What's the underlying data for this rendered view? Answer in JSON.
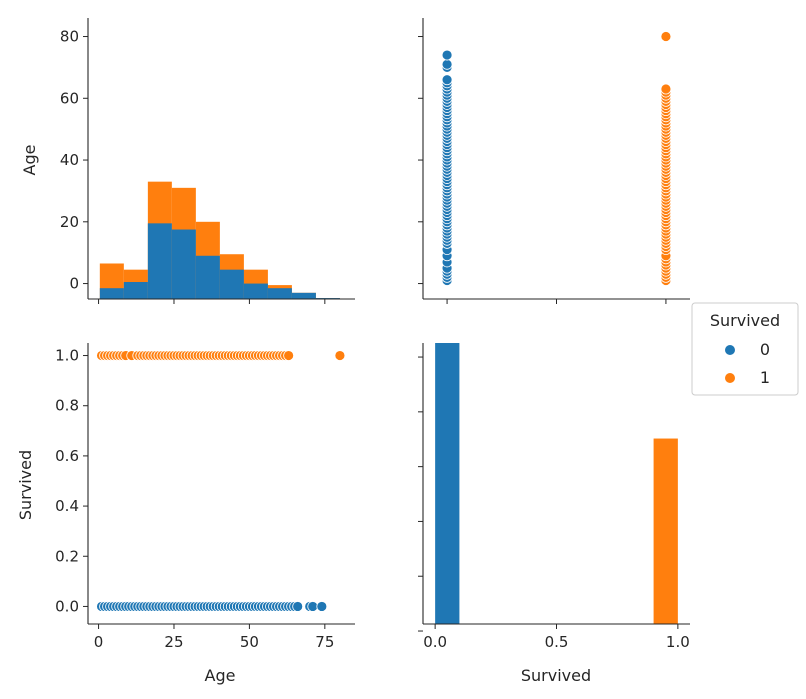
{
  "colors": {
    "survived_0": "#1f77b4",
    "survived_1": "#ff7f0e",
    "axis": "#262626"
  },
  "legend": {
    "title": "Survived",
    "entries": [
      {
        "label": "0",
        "color": "#1f77b4"
      },
      {
        "label": "1",
        "color": "#ff7f0e"
      }
    ],
    "placement": "right"
  },
  "chart_data": [
    {
      "panel": "age-vs-age",
      "type": "bar",
      "stacked": true,
      "xlabel": "",
      "ylabel": "Age",
      "ylim": [
        -5,
        86
      ],
      "yticks": [
        "0",
        "20",
        "40",
        "60",
        "80"
      ],
      "xlim": [
        -3.5,
        85
      ],
      "bin_edges": [
        0.42,
        8.38,
        16.34,
        24.29,
        32.25,
        40.21,
        48.17,
        56.13,
        64.08,
        72.04,
        80.0
      ],
      "series": [
        {
          "name": "0",
          "values": [
            -1.5,
            0.5,
            19.5,
            17.5,
            9.0,
            4.5,
            0.0,
            -1.5,
            -3.0,
            -4.7
          ]
        },
        {
          "name": "1",
          "values": [
            6.5,
            4.5,
            33.0,
            31.0,
            20.0,
            9.5,
            4.5,
            -0.5,
            -3.0,
            -4.7
          ]
        }
      ]
    },
    {
      "panel": "survived-vs-age",
      "type": "scatter",
      "xlabel": "",
      "ylabel": "",
      "xlim": [
        -0.11,
        1.11
      ],
      "ylim": [
        -5,
        86
      ],
      "series": [
        {
          "name": "0",
          "x": 0,
          "y": [
            1,
            2,
            3,
            4,
            5,
            7,
            9,
            11,
            13,
            14,
            15,
            16,
            17,
            18,
            19,
            20,
            21,
            22,
            23,
            24,
            25,
            26,
            27,
            28,
            29,
            30,
            31,
            32,
            33,
            34,
            35,
            36,
            37,
            38,
            39,
            40,
            41,
            42,
            43,
            44,
            45,
            46,
            47,
            48,
            49,
            50,
            51,
            52,
            53,
            54,
            55,
            56,
            57,
            58,
            59,
            60,
            61,
            62,
            63,
            64,
            65,
            66,
            70,
            71,
            74
          ]
        },
        {
          "name": "1",
          "x": 1,
          "y": [
            0.9,
            1,
            2,
            3,
            4,
            5,
            6,
            7,
            8,
            9,
            11,
            12,
            13,
            14,
            15,
            16,
            17,
            18,
            19,
            20,
            21,
            22,
            23,
            24,
            25,
            26,
            27,
            28,
            29,
            30,
            31,
            32,
            33,
            34,
            35,
            36,
            37,
            38,
            39,
            40,
            41,
            42,
            43,
            44,
            45,
            46,
            47,
            48,
            49,
            50,
            51,
            52,
            53,
            54,
            55,
            56,
            57,
            58,
            59,
            60,
            61,
            62,
            63,
            80
          ]
        }
      ]
    },
    {
      "panel": "age-vs-survived",
      "type": "scatter",
      "xlabel": "Age",
      "ylabel": "Survived",
      "xlim": [
        -3.5,
        85
      ],
      "ylim": [
        -0.07,
        1.05
      ],
      "xticks": [
        "0",
        "25",
        "50",
        "75"
      ],
      "yticks": [
        "0.0",
        "0.2",
        "0.4",
        "0.6",
        "0.8",
        "1.0"
      ],
      "series": [
        {
          "name": "0",
          "y": 0,
          "x": [
            1,
            2,
            3,
            4,
            5,
            6,
            7,
            8,
            9,
            10,
            11,
            12,
            13,
            14,
            15,
            16,
            17,
            18,
            19,
            20,
            21,
            22,
            23,
            24,
            25,
            26,
            27,
            28,
            29,
            30,
            31,
            32,
            33,
            34,
            35,
            36,
            37,
            38,
            39,
            40,
            41,
            42,
            43,
            44,
            45,
            46,
            47,
            48,
            49,
            50,
            51,
            52,
            53,
            54,
            55,
            56,
            57,
            58,
            59,
            60,
            61,
            62,
            63,
            64,
            65,
            66,
            70,
            71,
            74
          ]
        },
        {
          "name": "1",
          "y": 1,
          "x": [
            0.9,
            1,
            2,
            3,
            4,
            5,
            6,
            7,
            8,
            9,
            11,
            13,
            14,
            15,
            16,
            17,
            18,
            19,
            20,
            21,
            22,
            23,
            24,
            25,
            26,
            27,
            28,
            29,
            30,
            31,
            32,
            33,
            34,
            35,
            36,
            37,
            38,
            39,
            40,
            41,
            42,
            43,
            44,
            45,
            46,
            47,
            48,
            49,
            50,
            51,
            52,
            53,
            54,
            55,
            56,
            57,
            58,
            59,
            60,
            61,
            62,
            63,
            80
          ]
        }
      ]
    },
    {
      "panel": "survived-vs-survived",
      "type": "bar",
      "xlabel": "Survived",
      "ylabel": "",
      "xlim": [
        -0.05,
        1.05
      ],
      "ylim": [
        0,
        1.0
      ],
      "xticks": [
        "0.0",
        "0.5",
        "1.0"
      ],
      "bin_edges": [
        0.0,
        0.1,
        0.2,
        0.3,
        0.4,
        0.5,
        0.6,
        0.7,
        0.8,
        0.9,
        1.0
      ],
      "series": [
        {
          "name": "0",
          "values": [
            1.0,
            0,
            0,
            0,
            0,
            0,
            0,
            0,
            0,
            0
          ]
        },
        {
          "name": "1",
          "values": [
            0,
            0,
            0,
            0,
            0,
            0,
            0,
            0,
            0,
            0.66
          ]
        }
      ]
    }
  ]
}
